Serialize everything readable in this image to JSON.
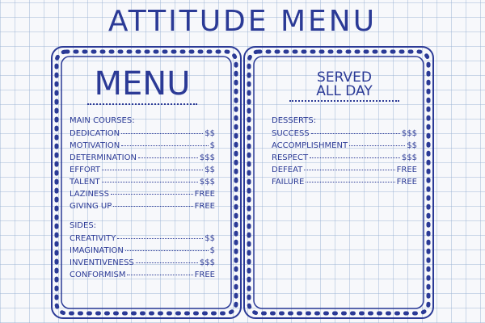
{
  "title": "ATTITUDE MENU",
  "panels": [
    {
      "heading": [
        "MENU"
      ],
      "sections": [
        {
          "title": "MAIN COURSES:",
          "items": [
            {
              "name": "DEDICATION",
              "price": "$$"
            },
            {
              "name": "MOTIVATION",
              "price": "$"
            },
            {
              "name": "DETERMINATION",
              "price": "$$$"
            },
            {
              "name": "EFFORT",
              "price": "$$"
            },
            {
              "name": "TALENT",
              "price": "$$$"
            },
            {
              "name": "LAZINESS",
              "price": "FREE"
            },
            {
              "name": "GIVING UP",
              "price": "FREE"
            }
          ]
        },
        {
          "title": "SIDES:",
          "items": [
            {
              "name": "CREATIVITY",
              "price": "$$"
            },
            {
              "name": "IMAGINATION",
              "price": "$"
            },
            {
              "name": "INVENTIVENESS",
              "price": "$$$"
            },
            {
              "name": "CONFORMISM",
              "price": "FREE"
            }
          ]
        }
      ]
    },
    {
      "heading": [
        "SERVED",
        "ALL DAY"
      ],
      "sections": [
        {
          "title": "DESSERTS:",
          "items": [
            {
              "name": "SUCCESS",
              "price": "$$$"
            },
            {
              "name": "ACCOMPLISHMENT",
              "price": "$$"
            },
            {
              "name": "RESPECT",
              "price": "$$$"
            },
            {
              "name": "DEFEAT",
              "price": "FREE"
            },
            {
              "name": "FAILURE",
              "price": "FREE"
            }
          ]
        }
      ]
    }
  ]
}
